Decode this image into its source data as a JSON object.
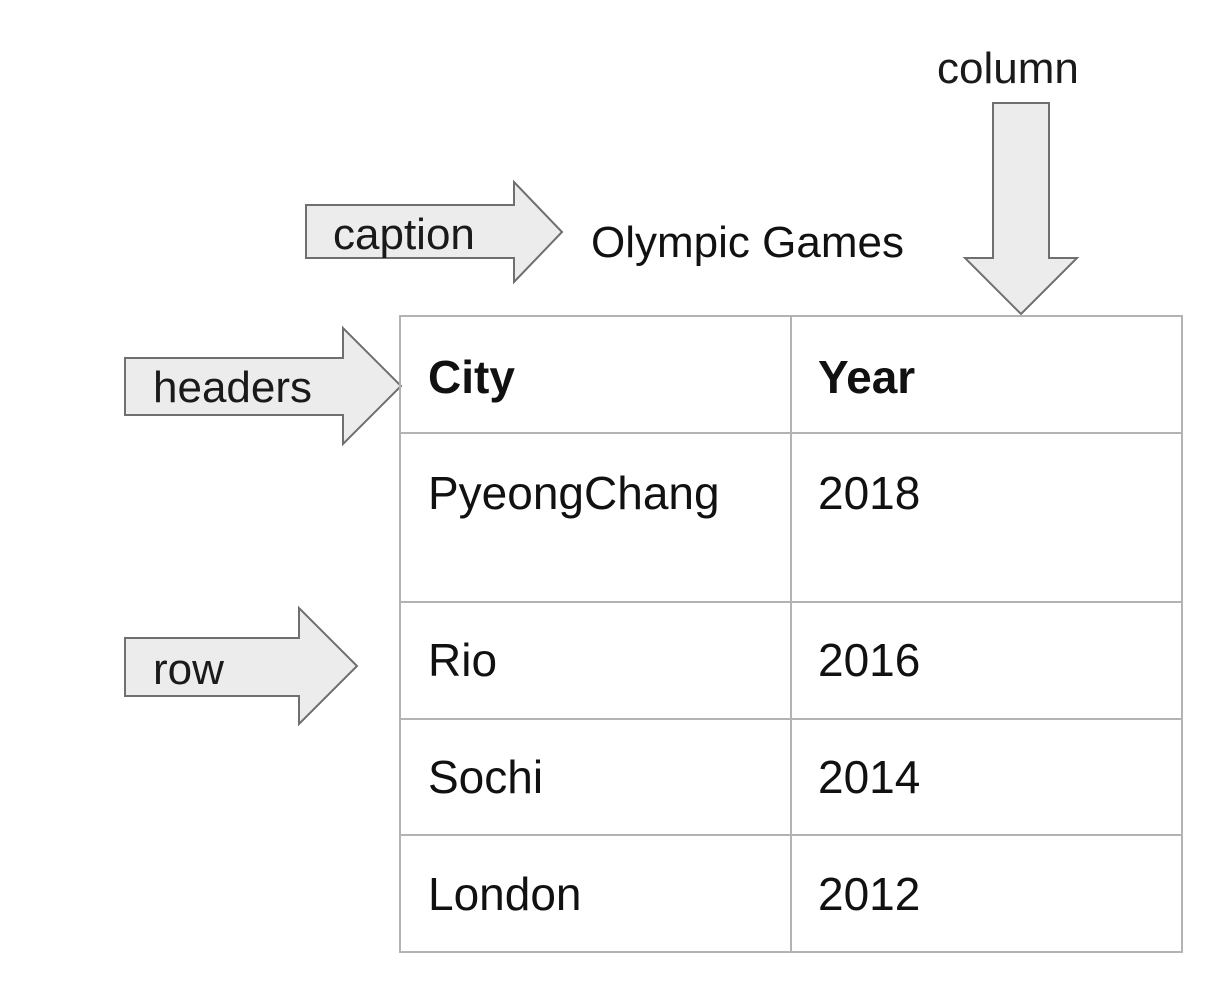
{
  "labels": {
    "column": "column",
    "caption": "caption",
    "headers": "headers",
    "row": "row"
  },
  "table": {
    "caption": "Olympic Games",
    "headers": [
      "City",
      "Year"
    ],
    "rows": [
      [
        "PyeongChang",
        "2018"
      ],
      [
        "Rio",
        "2016"
      ],
      [
        "Sochi",
        "2014"
      ],
      [
        "London",
        "2012"
      ]
    ]
  },
  "colors": {
    "arrow_fill": "#ececec",
    "arrow_stroke": "#6f6f6f",
    "table_border": "#b3b3b3"
  }
}
